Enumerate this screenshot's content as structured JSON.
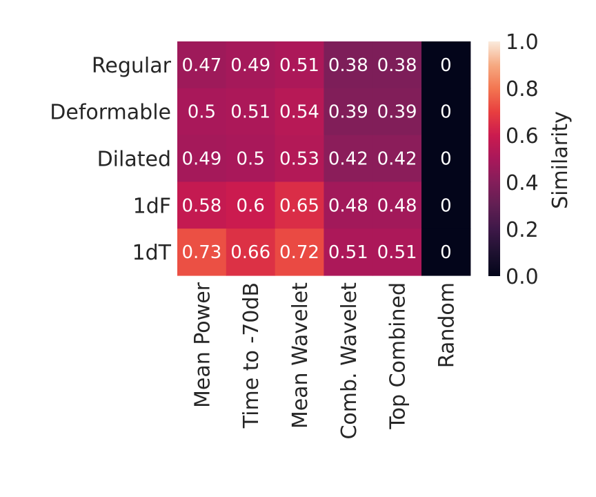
{
  "chart_data": {
    "type": "heatmap",
    "rows": [
      "Regular",
      "Deformable",
      "Dilated",
      "1dF",
      "1dT"
    ],
    "columns": [
      "Mean Power",
      "Time to -70dB",
      "Mean Wavelet",
      "Comb. Wavelet",
      "Top Combined",
      "Random"
    ],
    "values": [
      [
        0.47,
        0.49,
        0.51,
        0.38,
        0.38,
        0
      ],
      [
        0.5,
        0.51,
        0.54,
        0.39,
        0.39,
        0
      ],
      [
        0.49,
        0.5,
        0.53,
        0.42,
        0.42,
        0
      ],
      [
        0.58,
        0.6,
        0.65,
        0.48,
        0.48,
        0
      ],
      [
        0.73,
        0.66,
        0.72,
        0.51,
        0.51,
        0
      ]
    ],
    "cell_labels": [
      [
        "0.47",
        "0.49",
        "0.51",
        "0.38",
        "0.38",
        "0"
      ],
      [
        "0.5",
        "0.51",
        "0.54",
        "0.39",
        "0.39",
        "0"
      ],
      [
        "0.49",
        "0.5",
        "0.53",
        "0.42",
        "0.42",
        "0"
      ],
      [
        "0.58",
        "0.6",
        "0.65",
        "0.48",
        "0.48",
        "0"
      ],
      [
        "0.73",
        "0.66",
        "0.72",
        "0.51",
        "0.51",
        "0"
      ]
    ],
    "colorbar": {
      "label": "Similarity",
      "range": [
        0.0,
        1.0
      ],
      "ticks": [
        0.0,
        0.2,
        0.4,
        0.6,
        0.8,
        1.0
      ],
      "tick_labels": [
        "0.0",
        "0.2",
        "0.4",
        "0.6",
        "0.8",
        "1.0"
      ],
      "colormap": "rocket"
    }
  }
}
